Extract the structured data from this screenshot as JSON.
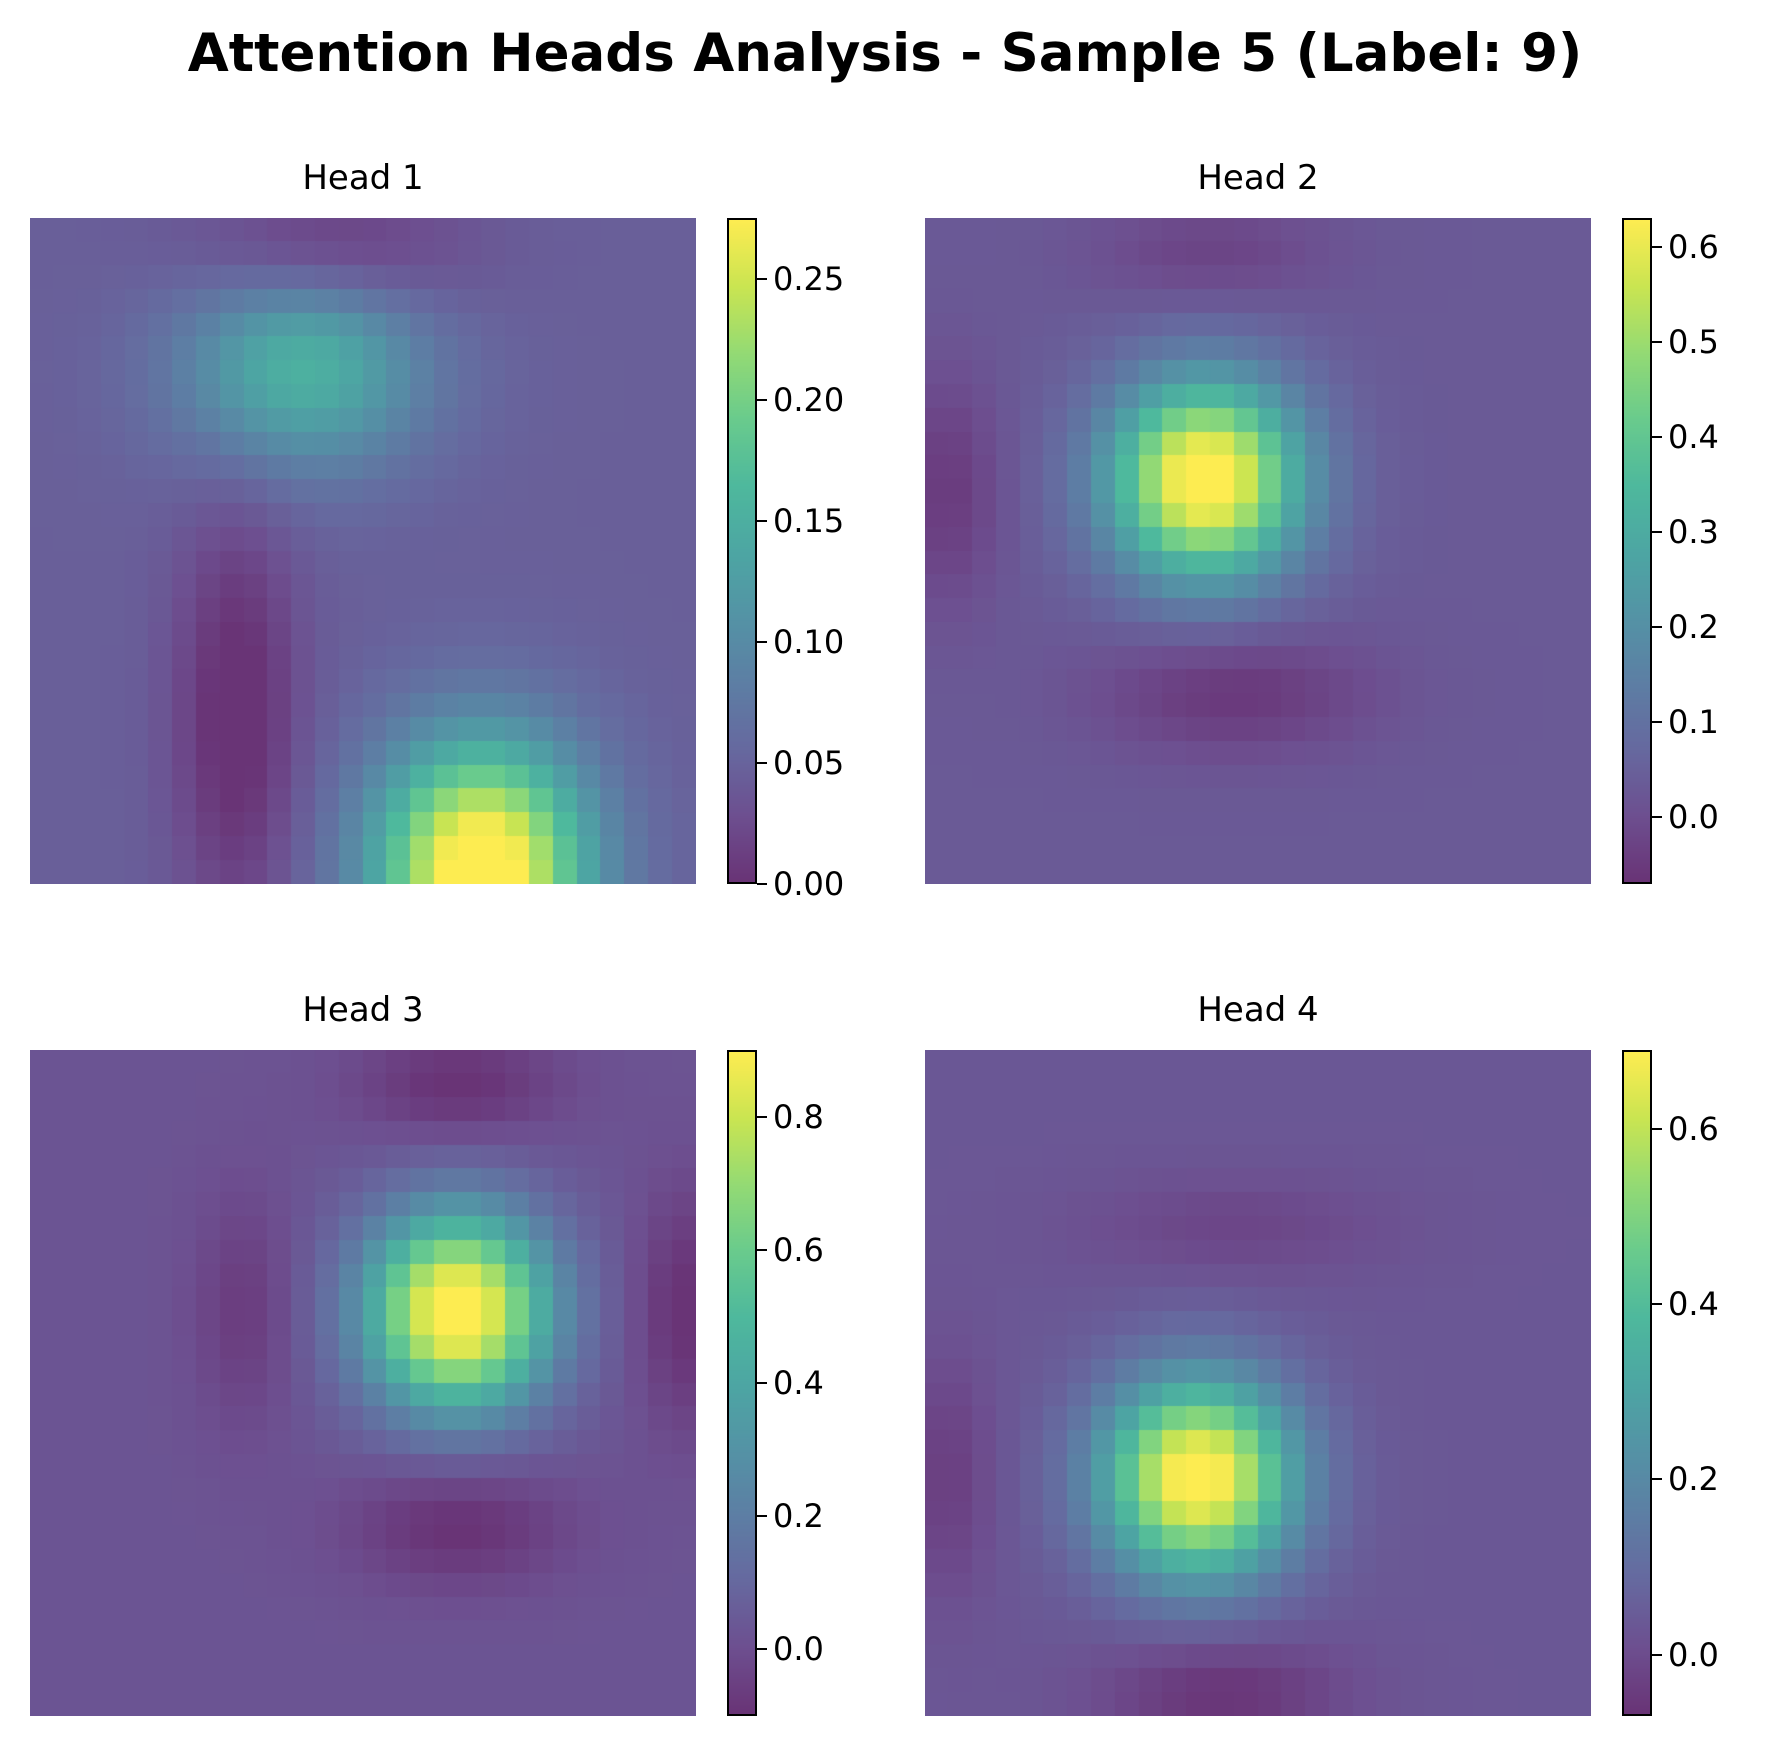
{
  "title": "Attention Heads Analysis - Sample 5 (Label: 9)",
  "colormap": "viridis",
  "chart_data": [
    {
      "type": "heatmap",
      "title": "Head 1",
      "grid_size": 28,
      "vmin": 0.0,
      "vmax": 0.275,
      "cbar_ticks": [
        0.0,
        0.05,
        0.1,
        0.15,
        0.2,
        0.25
      ],
      "cbar_tick_labels": [
        "0.00",
        "0.05",
        "0.10",
        "0.15",
        "0.20",
        "0.25"
      ],
      "components": [
        {
          "row": 5.8,
          "col": 11.0,
          "amp": 0.11,
          "sigma_r": 3.0,
          "sigma_c": 3.6
        },
        {
          "row": 27.0,
          "col": 18.5,
          "amp": 0.26,
          "sigma_r": 3.8,
          "sigma_c": 3.1
        },
        {
          "row": 1.0,
          "col": 12.0,
          "amp": -0.045,
          "sigma_r": 2.0,
          "sigma_c": 4.0
        },
        {
          "row": 20.5,
          "col": 8.2,
          "amp": -0.055,
          "sigma_r": 6.0,
          "sigma_c": 1.8
        }
      ],
      "baseline": 0.045
    },
    {
      "type": "heatmap",
      "title": "Head 2",
      "grid_size": 28,
      "vmin": -0.07,
      "vmax": 0.63,
      "cbar_ticks": [
        0.0,
        0.1,
        0.2,
        0.3,
        0.4,
        0.5,
        0.6
      ],
      "cbar_tick_labels": [
        "0.0",
        "0.1",
        "0.2",
        "0.3",
        "0.4",
        "0.5",
        "0.6"
      ],
      "components": [
        {
          "row": 10.5,
          "col": 11.3,
          "amp": 0.65,
          "sigma_r": 2.9,
          "sigma_c": 2.8
        },
        {
          "row": 19.5,
          "col": 12.5,
          "amp": -0.09,
          "sigma_r": 1.8,
          "sigma_c": 4.0
        },
        {
          "row": 1.0,
          "col": 11.5,
          "amp": -0.06,
          "sigma_r": 1.5,
          "sigma_c": 3.5
        },
        {
          "row": 11.0,
          "col": 0.5,
          "amp": -0.08,
          "sigma_r": 3.5,
          "sigma_c": 1.5
        }
      ],
      "baseline": 0.03
    },
    {
      "type": "heatmap",
      "title": "Head 3",
      "grid_size": 28,
      "vmin": -0.1,
      "vmax": 0.9,
      "cbar_ticks": [
        0.0,
        0.2,
        0.4,
        0.6,
        0.8
      ],
      "cbar_tick_labels": [
        "0.0",
        "0.2",
        "0.4",
        "0.6",
        "0.8"
      ],
      "components": [
        {
          "row": 10.5,
          "col": 17.5,
          "amp": 0.95,
          "sigma_r": 2.9,
          "sigma_c": 2.7
        },
        {
          "row": 19.5,
          "col": 17.5,
          "amp": -0.13,
          "sigma_r": 1.8,
          "sigma_c": 3.2
        },
        {
          "row": 1.0,
          "col": 17.5,
          "amp": -0.13,
          "sigma_r": 1.6,
          "sigma_c": 3.0
        },
        {
          "row": 10.5,
          "col": 8.5,
          "amp": -0.09,
          "sigma_r": 3.5,
          "sigma_c": 1.5
        },
        {
          "row": 10.5,
          "col": 27.0,
          "amp": -0.13,
          "sigma_r": 3.5,
          "sigma_c": 1.4
        }
      ],
      "baseline": 0.02
    },
    {
      "type": "heatmap",
      "title": "Head 4",
      "grid_size": 28,
      "vmin": -0.07,
      "vmax": 0.69,
      "cbar_ticks": [
        0.0,
        0.2,
        0.4,
        0.6
      ],
      "cbar_tick_labels": [
        "0.0",
        "0.2",
        "0.4",
        "0.6"
      ],
      "components": [
        {
          "row": 17.5,
          "col": 11.0,
          "amp": 0.7,
          "sigma_r": 2.9,
          "sigma_c": 2.8
        },
        {
          "row": 26.5,
          "col": 12.0,
          "amp": -0.1,
          "sigma_r": 1.6,
          "sigma_c": 3.5
        },
        {
          "row": 7.0,
          "col": 12.5,
          "amp": -0.05,
          "sigma_r": 1.5,
          "sigma_c": 4.5
        },
        {
          "row": 17.5,
          "col": 0.5,
          "amp": -0.07,
          "sigma_r": 3.5,
          "sigma_c": 1.3
        }
      ],
      "baseline": 0.03
    }
  ]
}
